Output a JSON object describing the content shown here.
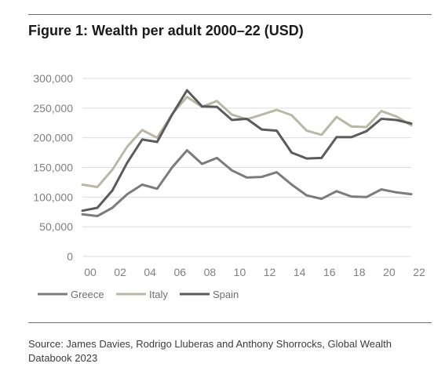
{
  "title": "Figure 1: Wealth per adult 2000–22 (USD)",
  "source": "Source: James Davies, Rodrigo Lluberas and Anthony Shorrocks, Global Wealth Databook 2023",
  "chart_data": {
    "type": "line",
    "x": [
      2000,
      2001,
      2002,
      2003,
      2004,
      2005,
      2006,
      2007,
      2008,
      2009,
      2010,
      2011,
      2012,
      2013,
      2014,
      2015,
      2016,
      2017,
      2018,
      2019,
      2020,
      2021,
      2022
    ],
    "x_tick_values": [
      2000,
      2002,
      2004,
      2006,
      2008,
      2010,
      2012,
      2014,
      2016,
      2018,
      2020,
      2022
    ],
    "x_tick_labels": [
      "00",
      "02",
      "04",
      "06",
      "08",
      "10",
      "12",
      "14",
      "16",
      "18",
      "20",
      "22"
    ],
    "y_tick_values": [
      0,
      50000,
      100000,
      150000,
      200000,
      250000,
      300000
    ],
    "y_tick_labels": [
      "0",
      "50,000",
      "100,000",
      "150,000",
      "200,000",
      "250,000",
      "300,000"
    ],
    "ylim": [
      0,
      300000
    ],
    "grid": "horizontal",
    "legend_position": "bottom-left",
    "series": [
      {
        "name": "Greece",
        "color": "#7b7b7b",
        "values": [
          71000,
          68000,
          82000,
          105000,
          121000,
          114000,
          150000,
          179000,
          156000,
          166000,
          145000,
          133000,
          134000,
          142000,
          121000,
          103000,
          97000,
          110000,
          101000,
          100000,
          113000,
          108000,
          105000
        ]
      },
      {
        "name": "Italy",
        "color": "#b9b8a7",
        "values": [
          121000,
          117000,
          146000,
          185000,
          213000,
          200000,
          240000,
          269000,
          252000,
          262000,
          239000,
          231000,
          239000,
          247000,
          238000,
          212000,
          205000,
          235000,
          219000,
          218000,
          245000,
          236000,
          221000
        ]
      },
      {
        "name": "Spain",
        "color": "#5b5b5e",
        "values": [
          77000,
          82000,
          111000,
          158000,
          197000,
          193000,
          239000,
          280000,
          253000,
          252000,
          230000,
          232000,
          214000,
          212000,
          175000,
          165000,
          166000,
          201000,
          201000,
          211000,
          232000,
          230000,
          224000
        ]
      }
    ]
  }
}
